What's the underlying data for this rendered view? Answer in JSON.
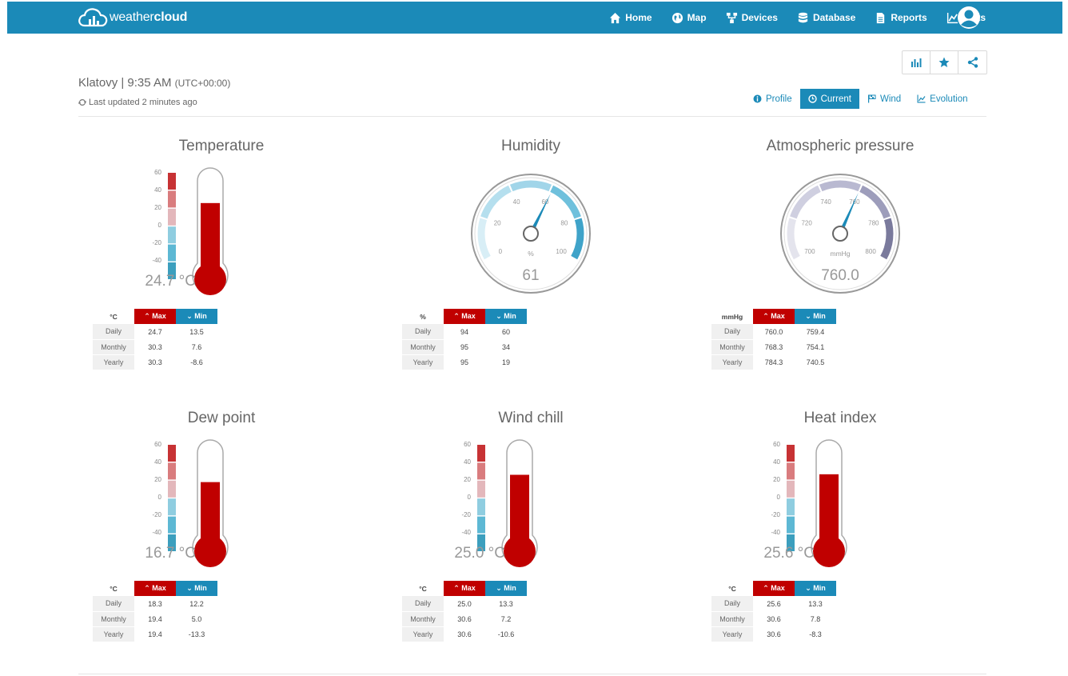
{
  "brand": {
    "pre": "weather",
    "bold": "cloud"
  },
  "nav": [
    {
      "label": "Home",
      "icon": "home-icon"
    },
    {
      "label": "Map",
      "icon": "globe-icon"
    },
    {
      "label": "Devices",
      "icon": "devices-icon"
    },
    {
      "label": "Database",
      "icon": "database-icon"
    },
    {
      "label": "Reports",
      "icon": "report-icon"
    },
    {
      "label": "Plots",
      "icon": "line-chart-icon"
    }
  ],
  "station": {
    "name": "Klatovy | 9:35 AM",
    "tz": "(UTC+00:00)",
    "updated": "Last updated 2 minutes ago"
  },
  "tabs": [
    {
      "label": "Profile",
      "icon": "info-icon",
      "active": false
    },
    {
      "label": "Current",
      "icon": "clock-icon",
      "active": true
    },
    {
      "label": "Wind",
      "icon": "flag-icon",
      "active": false
    },
    {
      "label": "Evolution",
      "icon": "line-chart-icon",
      "active": false
    }
  ],
  "header_labels": {
    "max": "Max",
    "min": "Min"
  },
  "row_labels": [
    "Daily",
    "Monthly",
    "Yearly"
  ],
  "thermo_scale": [
    "60",
    "40",
    "20",
    "0",
    "-20",
    "-40"
  ],
  "colors": {
    "accent": "#1b8ab8",
    "max": "#c00000",
    "min": "#1b8ab8"
  },
  "panels": {
    "temperature": {
      "title": "Temperature",
      "unit": "°C",
      "value": 24.7,
      "display": "24.7 °C",
      "stats": [
        [
          "24.7",
          "13.5"
        ],
        [
          "30.3",
          "7.6"
        ],
        [
          "30.3",
          "-8.6"
        ]
      ]
    },
    "humidity": {
      "title": "Humidity",
      "unit": "%",
      "value": 61,
      "display": "61",
      "scale_unit": "%",
      "ticks": [
        "0",
        "20",
        "40",
        "60",
        "80",
        "100"
      ],
      "min": 0,
      "max": 100,
      "stats": [
        [
          "94",
          "60"
        ],
        [
          "95",
          "34"
        ],
        [
          "95",
          "19"
        ]
      ]
    },
    "pressure": {
      "title": "Atmospheric pressure",
      "unit": "mmHg",
      "value": 760.0,
      "display": "760.0",
      "scale_unit": "mmHg",
      "ticks": [
        "700",
        "720",
        "740",
        "760",
        "780",
        "800"
      ],
      "min": 700,
      "max": 800,
      "stats": [
        [
          "760.0",
          "759.4"
        ],
        [
          "768.3",
          "754.1"
        ],
        [
          "784.3",
          "740.5"
        ]
      ]
    },
    "dewpoint": {
      "title": "Dew point",
      "unit": "°C",
      "value": 16.7,
      "display": "16.7 °C",
      "stats": [
        [
          "18.3",
          "12.2"
        ],
        [
          "19.4",
          "5.0"
        ],
        [
          "19.4",
          "-13.3"
        ]
      ]
    },
    "windchill": {
      "title": "Wind chill",
      "unit": "°C",
      "value": 25.0,
      "display": "25.0 °C",
      "stats": [
        [
          "25.0",
          "13.3"
        ],
        [
          "30.6",
          "7.2"
        ],
        [
          "30.6",
          "-10.6"
        ]
      ]
    },
    "heatindex": {
      "title": "Heat index",
      "unit": "°C",
      "value": 25.6,
      "display": "25.6 °C",
      "stats": [
        [
          "25.6",
          "13.3"
        ],
        [
          "30.6",
          "7.8"
        ],
        [
          "30.6",
          "-8.3"
        ]
      ]
    }
  }
}
